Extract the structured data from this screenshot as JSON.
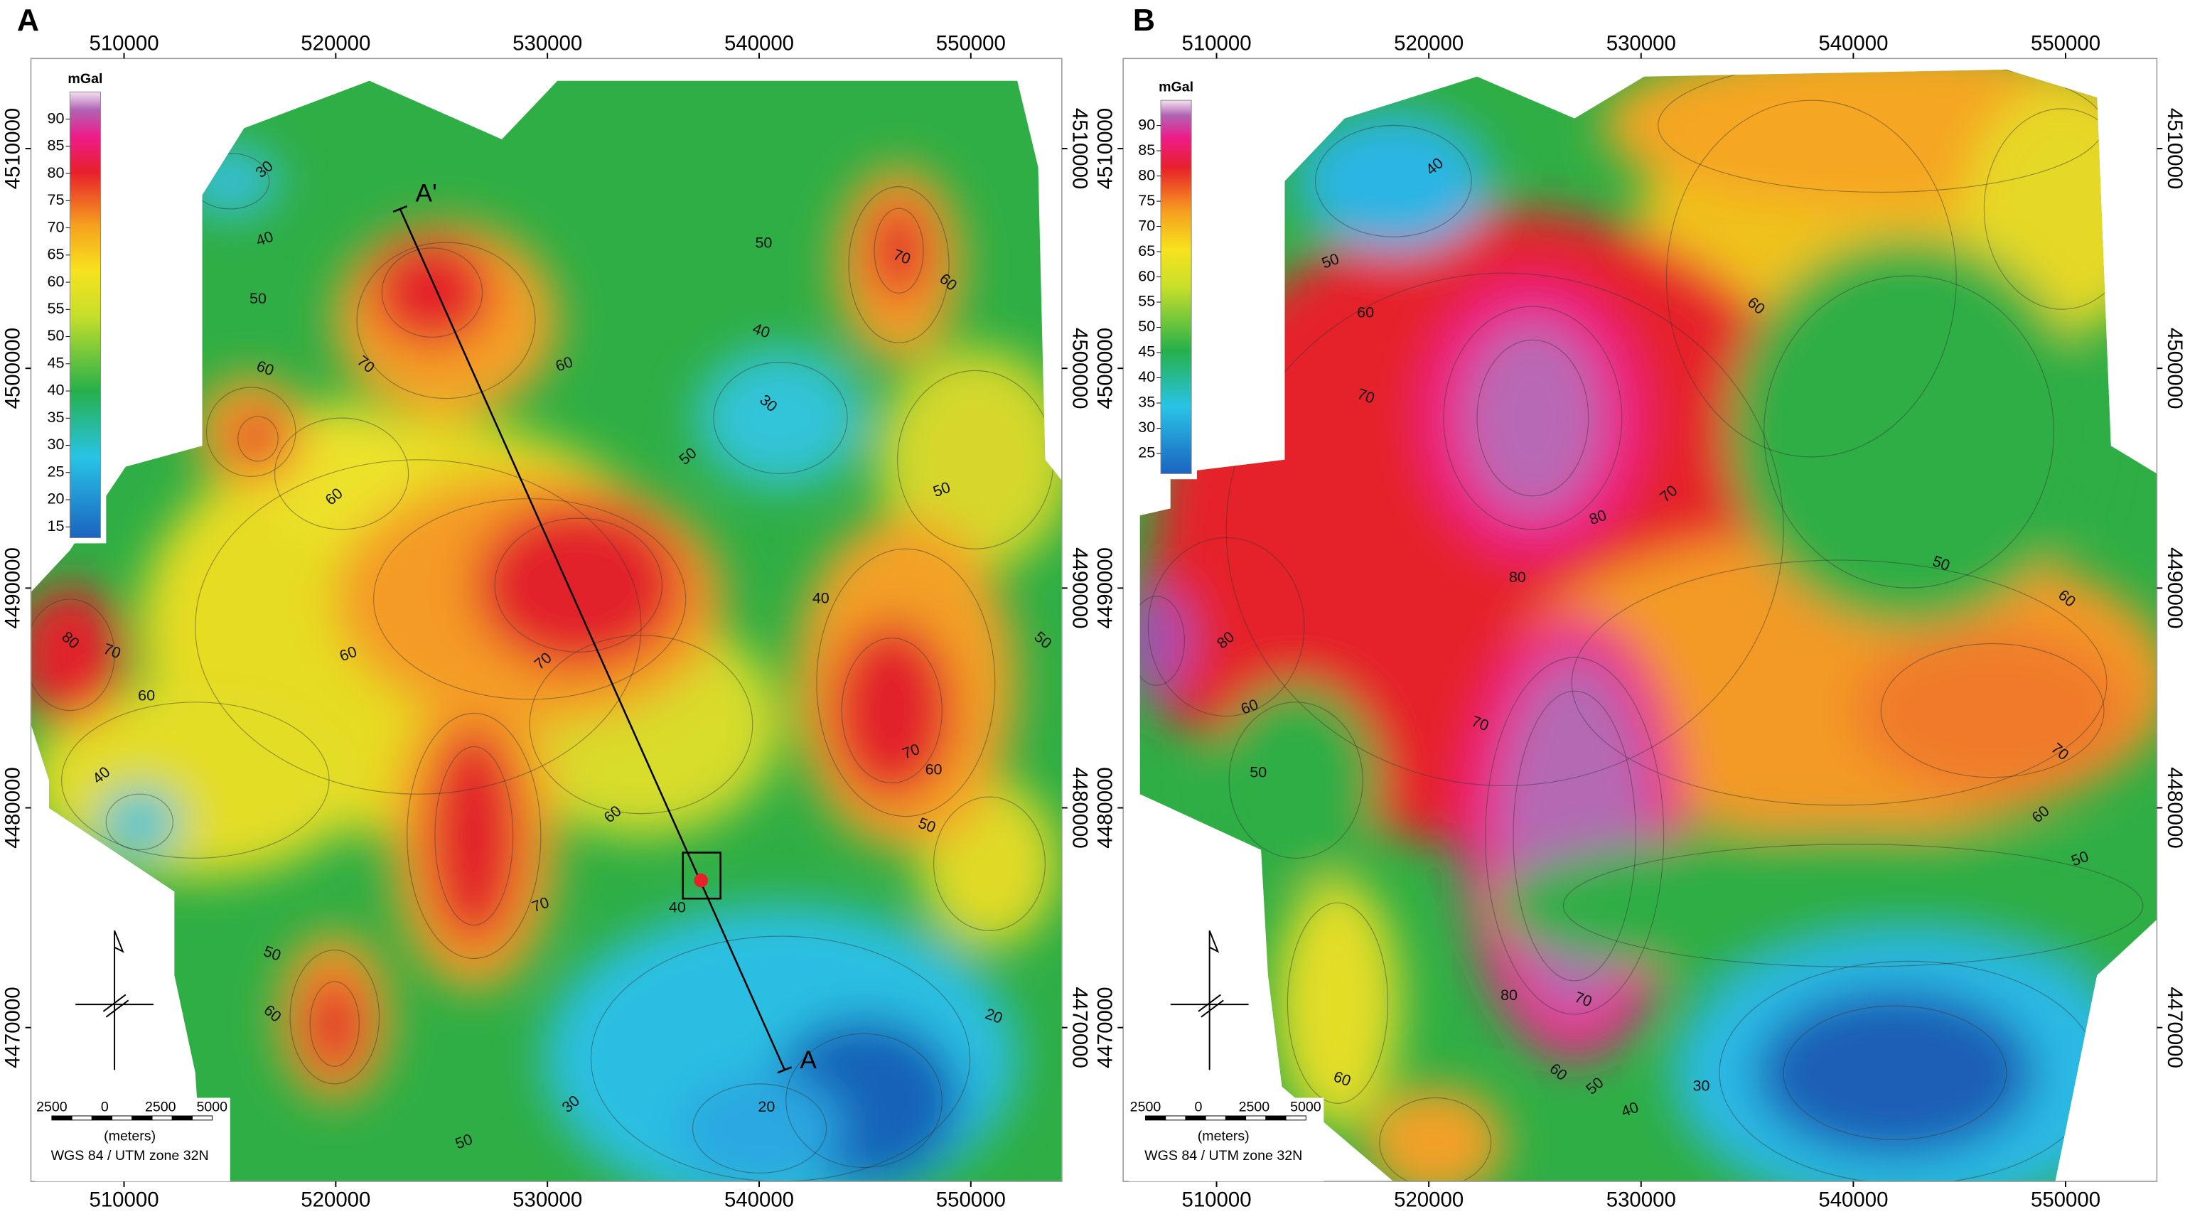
{
  "panels": [
    {
      "label": "A",
      "xlim": [
        505600,
        554300
      ],
      "ylim": [
        4463000,
        4514100
      ],
      "xticks": [
        510000,
        520000,
        530000,
        540000,
        550000
      ],
      "yticks": [
        4470000,
        4480000,
        4490000,
        4500000,
        4510000
      ],
      "colorbar": {
        "unit": "mGal",
        "clim": [
          13,
          95
        ],
        "ticks": [
          15,
          20,
          25,
          30,
          35,
          40,
          45,
          50,
          55,
          60,
          65,
          70,
          75,
          80,
          85,
          90
        ]
      },
      "contour_labels": [
        "30",
        "40",
        "50",
        "60",
        "70",
        "60",
        "60",
        "50",
        "40",
        "30",
        "50",
        "50",
        "40",
        "70",
        "60",
        "70",
        "60",
        "60",
        "70",
        "80",
        "40",
        "70",
        "60",
        "50",
        "50",
        "60",
        "70",
        "40",
        "50",
        "60",
        "30",
        "50",
        "20",
        "20"
      ],
      "profile": {
        "start": "A'",
        "end": "A"
      },
      "scale_bar": {
        "ticks": [
          "2500",
          "0",
          "2500",
          "5000"
        ],
        "unit": "(meters)",
        "crs": "WGS 84 / UTM zone 32N"
      }
    },
    {
      "label": "B",
      "xlim": [
        505600,
        554300
      ],
      "ylim": [
        4463000,
        4514100
      ],
      "xticks": [
        510000,
        520000,
        530000,
        540000,
        550000
      ],
      "yticks": [
        4470000,
        4480000,
        4490000,
        4500000,
        4510000
      ],
      "colorbar": {
        "unit": "mGal",
        "clim": [
          21,
          95
        ],
        "ticks": [
          25,
          30,
          35,
          40,
          45,
          50,
          55,
          60,
          65,
          70,
          75,
          80,
          85,
          90
        ]
      },
      "contour_labels": [
        "40",
        "50",
        "60",
        "70",
        "60",
        "70",
        "80",
        "80",
        "50",
        "60",
        "80",
        "60",
        "50",
        "70",
        "70",
        "60",
        "50",
        "80",
        "70",
        "60",
        "50",
        "40",
        "30",
        "60"
      ],
      "scale_bar": {
        "ticks": [
          "2500",
          "0",
          "2500",
          "5000"
        ],
        "unit": "(meters)",
        "crs": "WGS 84 / UTM zone 32N"
      }
    }
  ]
}
